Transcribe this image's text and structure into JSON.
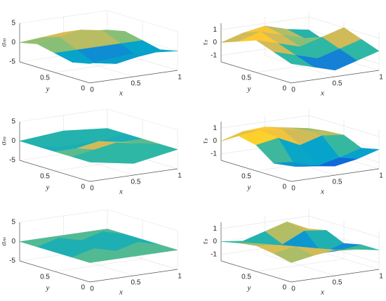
{
  "chart_data": [
    {
      "type": "surface",
      "colormap": "parula",
      "zlabel": "σₘ",
      "xlabel": "x",
      "ylabel": "y",
      "xlim": [
        0,
        1
      ],
      "ylim": [
        0,
        1
      ],
      "zlim": [
        -5,
        5
      ],
      "xticks": [
        0,
        0.5,
        1
      ],
      "yticks": [
        0,
        0.5
      ],
      "zticks": [
        -5,
        0,
        5
      ],
      "x": [
        0,
        0.25,
        0.5,
        0.75,
        1
      ],
      "y": [
        0,
        0.25,
        0.5,
        0.75,
        1
      ],
      "z": [
        [
          0,
          0.5,
          1,
          0.5,
          0
        ],
        [
          -1,
          -2,
          -3,
          -2,
          -1
        ],
        [
          0,
          0,
          0,
          0,
          0
        ],
        [
          1,
          2,
          3,
          2,
          1
        ],
        [
          0,
          0.5,
          1,
          0.5,
          0
        ]
      ]
    },
    {
      "type": "surface",
      "colormap": "parula",
      "zlabel": "τₛ",
      "xlabel": "x",
      "ylabel": "y",
      "xlim": [
        0,
        1
      ],
      "ylim": [
        0,
        1
      ],
      "zlim": [
        -1.5,
        1.5
      ],
      "xticks": [
        0,
        0.5,
        1
      ],
      "yticks": [
        0,
        0.5
      ],
      "zticks": [
        -1,
        0,
        1
      ],
      "x": [
        0,
        0.25,
        0.5,
        0.75,
        1
      ],
      "y": [
        0,
        0.25,
        0.5,
        0.75,
        1
      ],
      "z": [
        [
          0,
          -0.5,
          -1,
          -0.5,
          0
        ],
        [
          0.5,
          0,
          -0.5,
          0,
          0.5
        ],
        [
          1,
          0.5,
          0,
          0.5,
          1
        ],
        [
          0.5,
          1,
          0.5,
          0,
          -0.5
        ],
        [
          0,
          0.5,
          0.8,
          0.3,
          0
        ]
      ]
    },
    {
      "type": "surface",
      "colormap": "parula",
      "zlabel": "σₘ",
      "xlabel": "x",
      "ylabel": "y",
      "xlim": [
        0,
        1
      ],
      "ylim": [
        0,
        1
      ],
      "zlim": [
        -5,
        5
      ],
      "xticks": [
        0,
        0.5,
        1
      ],
      "yticks": [
        0,
        0.5
      ],
      "zticks": [
        -5,
        0,
        5
      ],
      "x": [
        0,
        0.25,
        0.5,
        0.75,
        1
      ],
      "y": [
        0,
        0.25,
        0.5,
        0.75,
        1
      ],
      "z": [
        [
          0,
          -1,
          -2,
          -1,
          0
        ],
        [
          0,
          1,
          2,
          1,
          0
        ],
        [
          0,
          0,
          1,
          0,
          0
        ],
        [
          0,
          -1,
          -1,
          -1,
          0
        ],
        [
          0,
          0.5,
          1,
          0.5,
          0
        ]
      ]
    },
    {
      "type": "surface",
      "colormap": "parula",
      "zlabel": "τₛ",
      "xlabel": "x",
      "ylabel": "y",
      "xlim": [
        0,
        1
      ],
      "ylim": [
        0,
        1
      ],
      "zlim": [
        -1.5,
        1.5
      ],
      "xticks": [
        0,
        0.5,
        1
      ],
      "yticks": [
        0,
        0.5
      ],
      "zticks": [
        -1,
        0,
        1
      ],
      "x": [
        0,
        0.25,
        0.5,
        0.75,
        1
      ],
      "y": [
        0,
        0.25,
        0.5,
        0.75,
        1
      ],
      "z": [
        [
          0,
          -0.5,
          -0.8,
          -0.5,
          0
        ],
        [
          -0.5,
          -1,
          -1.2,
          -0.8,
          -0.3
        ],
        [
          0.5,
          0.8,
          0,
          0.5,
          0.3
        ],
        [
          0.8,
          1,
          0.8,
          0.5,
          0.2
        ],
        [
          0,
          0.5,
          0.6,
          0.3,
          0
        ]
      ]
    },
    {
      "type": "surface",
      "colormap": "parula",
      "zlabel": "σₘ",
      "xlabel": "x",
      "ylabel": "y",
      "xlim": [
        0,
        1
      ],
      "ylim": [
        0,
        1
      ],
      "zlim": [
        -5,
        5
      ],
      "xticks": [
        0,
        0.5,
        1
      ],
      "yticks": [
        0,
        0.5
      ],
      "zticks": [
        -5,
        0,
        5
      ],
      "x": [
        0,
        0.25,
        0.5,
        0.75,
        1
      ],
      "y": [
        0,
        0.25,
        0.5,
        0.75,
        1
      ],
      "z": [
        [
          0,
          0,
          0,
          0,
          0
        ],
        [
          0,
          1.5,
          0,
          1.5,
          0
        ],
        [
          0,
          -1,
          0,
          -1,
          0
        ],
        [
          0,
          1.5,
          0,
          1.5,
          0
        ],
        [
          0,
          0,
          0,
          0,
          0
        ]
      ]
    },
    {
      "type": "surface",
      "colormap": "parula",
      "zlabel": "τₛ",
      "xlabel": "x",
      "ylabel": "y",
      "xlim": [
        0,
        1
      ],
      "ylim": [
        0,
        1
      ],
      "zlim": [
        -1.5,
        1.5
      ],
      "xticks": [
        0,
        0.5,
        1
      ],
      "yticks": [
        0,
        0.5
      ],
      "zticks": [
        -1,
        0,
        1
      ],
      "x": [
        0,
        0.25,
        0.5,
        0.75,
        1
      ],
      "y": [
        0,
        0.25,
        0.5,
        0.75,
        1
      ],
      "z": [
        [
          0,
          0.3,
          0.5,
          0.3,
          0
        ],
        [
          0.3,
          0.6,
          0.2,
          -0.2,
          0
        ],
        [
          0.5,
          0.3,
          -0.5,
          -0.8,
          -0.3
        ],
        [
          0.3,
          0,
          -0.3,
          0.5,
          0.3
        ],
        [
          0,
          -0.2,
          0.3,
          0.8,
          0
        ]
      ]
    }
  ]
}
